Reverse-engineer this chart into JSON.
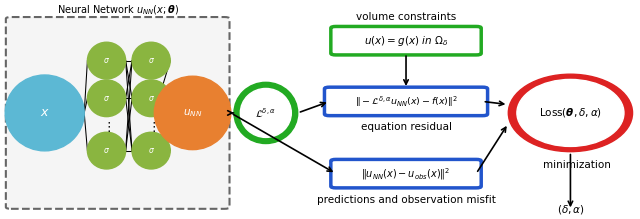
{
  "fig_width": 6.4,
  "fig_height": 2.19,
  "dpi": 100,
  "bg_color": "#ffffff",
  "nn_box_label": "Neural Network $u_{NN}(x;\\boldsymbol{\\theta})$",
  "nn_box_color": "#555555",
  "x_node_color": "#5cb8d4",
  "x_node_label": "$x$",
  "sigma_node_color": "#8ab540",
  "sigma_node_label": "$\\sigma$",
  "unn_node_color": "#e88030",
  "unn_node_label": "$u_{NN}$",
  "L_circle_color": "#22aa22",
  "L_circle_label": "$\\mathcal{L}^{\\delta,\\alpha}$",
  "box_vc_color": "#22aa22",
  "box_vc_label": "$u(x) = g(x)$ in $\\Omega_\\delta$",
  "box_vc_text_above": "volume constraints",
  "box_eq_color": "#2255cc",
  "box_eq_label": "$\\|-\\mathcal{L}^{\\delta,\\alpha}u_{NN}(x) - f(x)\\|^2$",
  "box_eq_text_below": "equation residual",
  "box_obs_color": "#2255cc",
  "box_obs_label": "$\\|u_{NN}(x) - u_{obs}(x)\\|^2$",
  "box_obs_text_below": "predictions and observation misfit",
  "loss_ellipse_color": "#dd2222",
  "loss_ellipse_label": "Loss$(\\boldsymbol{\\theta}, \\delta, \\alpha)$",
  "delta_alpha_text": "$(\\delta, \\alpha)$",
  "minimization_text": "minimization"
}
